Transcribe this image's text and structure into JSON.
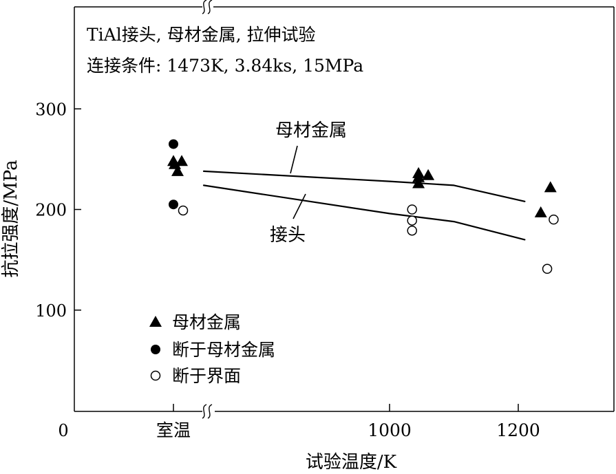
{
  "chart_data": {
    "type": "scatter",
    "annotation_lines": [
      "TiAl接头, 母材金属, 拉伸试验",
      "连接条件: 1473K, 3.84ks, 15MPa"
    ],
    "xlabel": "试验温度/K",
    "ylabel": "抗拉强度/MPa",
    "origin_label": "0",
    "x_ticks": [
      {
        "label": "室温",
        "value": "RT"
      },
      {
        "label": "1000",
        "value": 1000
      },
      {
        "label": "1200",
        "value": 1200
      }
    ],
    "y_ticks": [
      100,
      200,
      300
    ],
    "ylim": [
      0,
      350
    ],
    "x_axis_break": true,
    "legend": {
      "position": "bottom-left",
      "entries": [
        {
          "label": "母材金属",
          "marker": "triangle-filled"
        },
        {
          "label": "断于母材金属",
          "marker": "circle-filled"
        },
        {
          "label": "断于界面",
          "marker": "circle-open"
        }
      ]
    },
    "curves": [
      {
        "name": "母材金属",
        "x": [
          "RT+",
          1000,
          1100,
          1210
        ],
        "y": [
          238,
          228,
          224,
          208
        ]
      },
      {
        "name": "接头",
        "x": [
          "RT+",
          1000,
          1100,
          1210
        ],
        "y": [
          224,
          196,
          188,
          170
        ]
      }
    ],
    "series": [
      {
        "label": "母材金属",
        "marker": "triangle-filled",
        "x": [
          "RT",
          "RT",
          "RT",
          "RT",
          1045,
          1045,
          1045,
          1060,
          1235,
          1250
        ],
        "y": [
          248,
          238,
          248,
          245,
          236,
          226,
          232,
          234,
          197,
          222
        ]
      },
      {
        "label": "断于母材金属",
        "marker": "circle-filled",
        "x": [
          "RT",
          "RT"
        ],
        "y": [
          265,
          205
        ]
      },
      {
        "label": "断于界面",
        "marker": "circle-open",
        "x": [
          "RT",
          1035,
          1035,
          1035,
          1245,
          1255
        ],
        "y": [
          199,
          200,
          189,
          179,
          141,
          190
        ]
      }
    ]
  }
}
